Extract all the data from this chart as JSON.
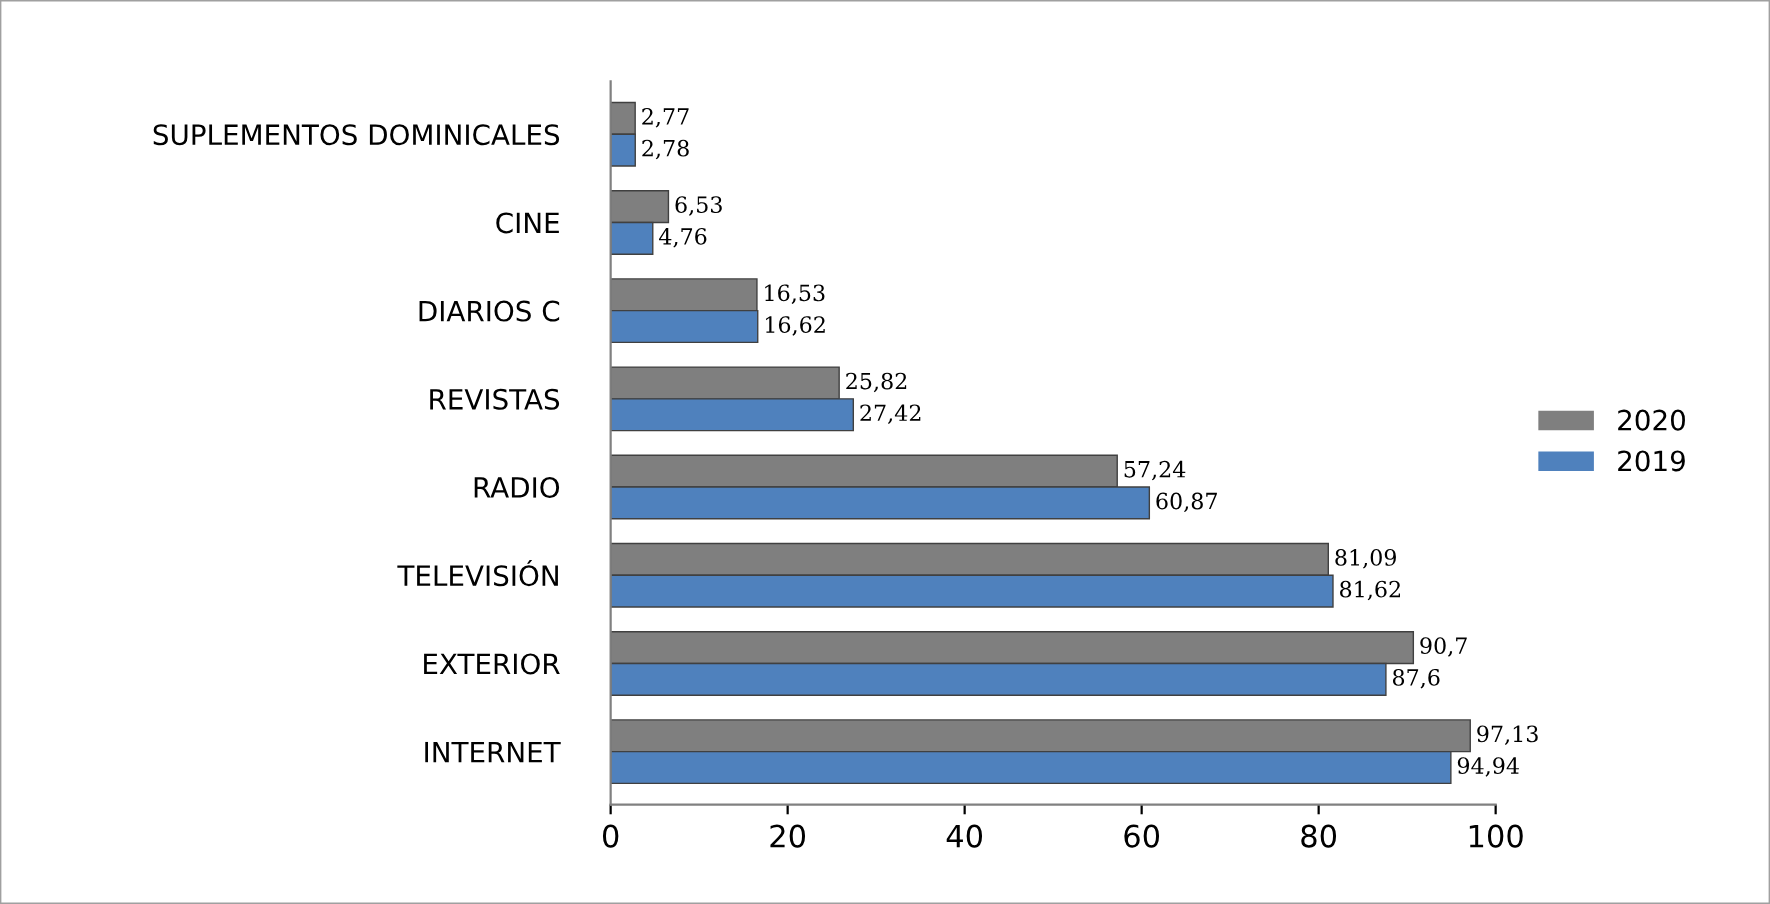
{
  "chart_data": {
    "type": "bar",
    "orientation": "horizontal",
    "categories": [
      "SUPLEMENTOS DOMINICALES",
      "CINE",
      "DIARIOS C",
      "REVISTAS",
      "RADIO",
      "TELEVISIÓN",
      "EXTERIOR",
      "INTERNET"
    ],
    "series": [
      {
        "name": "2020",
        "color": "#7f7f7f",
        "values": [
          2.77,
          6.53,
          16.53,
          25.82,
          57.24,
          81.09,
          90.7,
          97.13
        ],
        "value_labels": [
          "2,77",
          "6,53",
          "16,53",
          "25,82",
          "57,24",
          "81,09",
          "90,7",
          "97,13"
        ]
      },
      {
        "name": "2019",
        "color": "#4f81bd",
        "values": [
          2.78,
          4.76,
          16.62,
          27.42,
          60.87,
          81.62,
          87.6,
          94.94
        ],
        "value_labels": [
          "2,78",
          "4,76",
          "16,62",
          "27,42",
          "60,87",
          "81,62",
          "87,6",
          "94,94"
        ]
      }
    ],
    "xlim": [
      0,
      100
    ],
    "xticks": [
      0,
      20,
      40,
      60,
      80,
      100
    ],
    "grid": false,
    "legend": "right"
  }
}
